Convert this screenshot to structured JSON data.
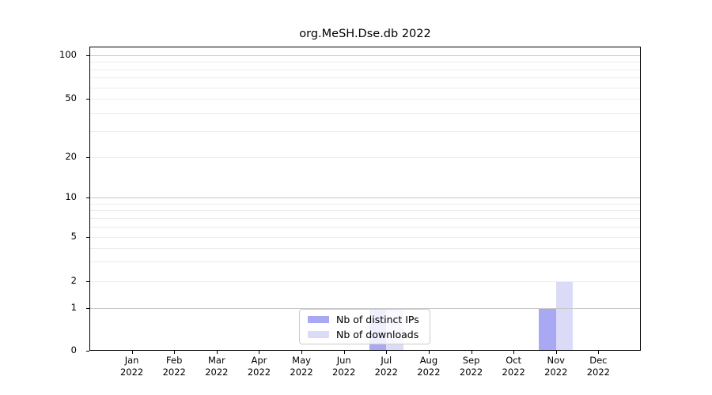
{
  "chart_data": {
    "type": "bar",
    "title": "org.MeSH.Dse.db 2022",
    "categories": [
      "Jan",
      "Feb",
      "Mar",
      "Apr",
      "May",
      "Jun",
      "Jul",
      "Aug",
      "Sep",
      "Oct",
      "Nov",
      "Dec"
    ],
    "x_year_label": "2022",
    "series": [
      {
        "name": "Nb of distinct IPs",
        "color": "#a9a9f3",
        "values": [
          0,
          0,
          0,
          0,
          0,
          0,
          1,
          0,
          0,
          0,
          1,
          0
        ]
      },
      {
        "name": "Nb of downloads",
        "color": "#dbdbf8",
        "values": [
          0,
          0,
          0,
          0,
          0,
          0,
          1,
          0,
          0,
          0,
          2,
          0
        ]
      }
    ],
    "yscale": "log-like",
    "yticks": [
      0,
      1,
      2,
      5,
      10,
      20,
      50,
      100
    ],
    "minor_grid_values": [
      2,
      3,
      4,
      5,
      6,
      7,
      8,
      9,
      20,
      30,
      40,
      50,
      60,
      70,
      80,
      90
    ],
    "major_grid_values": [
      1,
      10,
      100
    ],
    "ylim": [
      0,
      110
    ],
    "grid": true,
    "legend_position": "inside-bottom-center",
    "axis_color": "#000000",
    "major_grid_color": "#c9c9c9",
    "minor_grid_color": "#ececec"
  }
}
